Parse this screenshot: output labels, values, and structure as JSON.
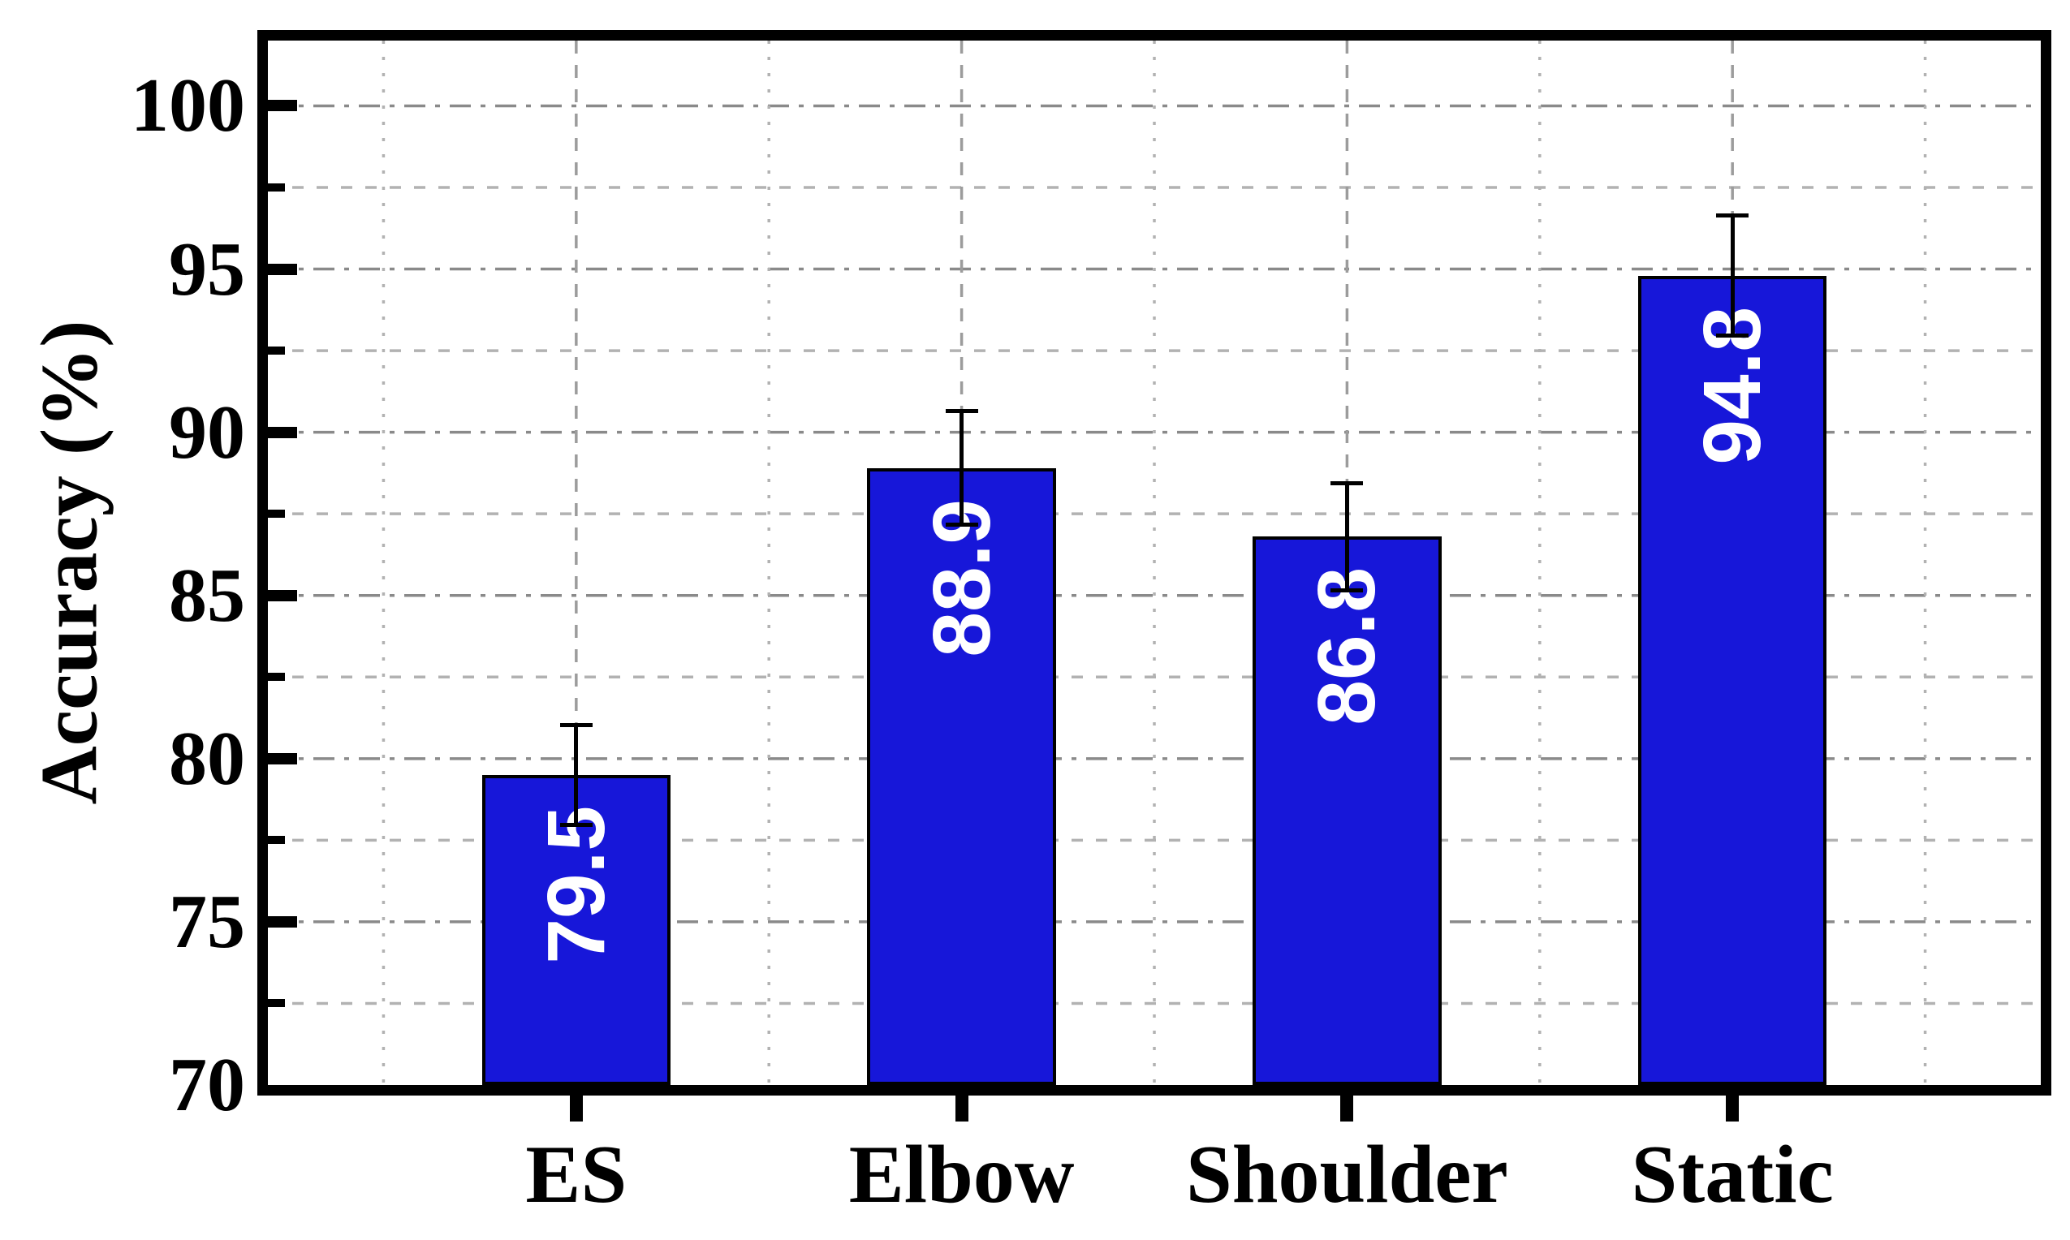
{
  "chart_data": {
    "type": "bar",
    "title": "",
    "xlabel": "",
    "ylabel": "Accuracy (%)",
    "categories": [
      "ES",
      "Elbow",
      "Shoulder",
      "Static"
    ],
    "values": [
      79.5,
      88.9,
      86.8,
      94.8
    ],
    "value_labels": [
      "79.5",
      "88.9",
      "86.8",
      "94.8"
    ],
    "errors": [
      1.6,
      1.8,
      1.7,
      1.9
    ],
    "ylim": [
      70,
      102
    ],
    "y_major_ticks": [
      70,
      75,
      80,
      85,
      90,
      95,
      100
    ],
    "y_tick_labels": [
      "70",
      "75",
      "80",
      "85",
      "90",
      "95",
      "100"
    ],
    "y_minor_ticks": [
      72.5,
      77.5,
      82.5,
      87.5,
      92.5,
      97.5
    ],
    "x_positions": [
      1,
      2,
      3,
      4
    ],
    "x_minor_positions": [
      0.5,
      1.5,
      2.5,
      3.5,
      4.5
    ],
    "xlim": [
      0.2,
      4.8
    ],
    "bar_width_fraction": 0.49,
    "grid": true,
    "legend": false,
    "colors": {
      "background": "#ffffff",
      "bar_fill": "#1717d9",
      "bar_border": "#000000",
      "error_bar": "#000000",
      "value_label": "#ffffff",
      "axis": "#000000",
      "grid_major_h": "#8a8a8a",
      "grid_minor_h": "#b2b2b2",
      "grid_major_v": "#9c9c9c",
      "grid_minor_v": "#b2b2b2"
    }
  }
}
